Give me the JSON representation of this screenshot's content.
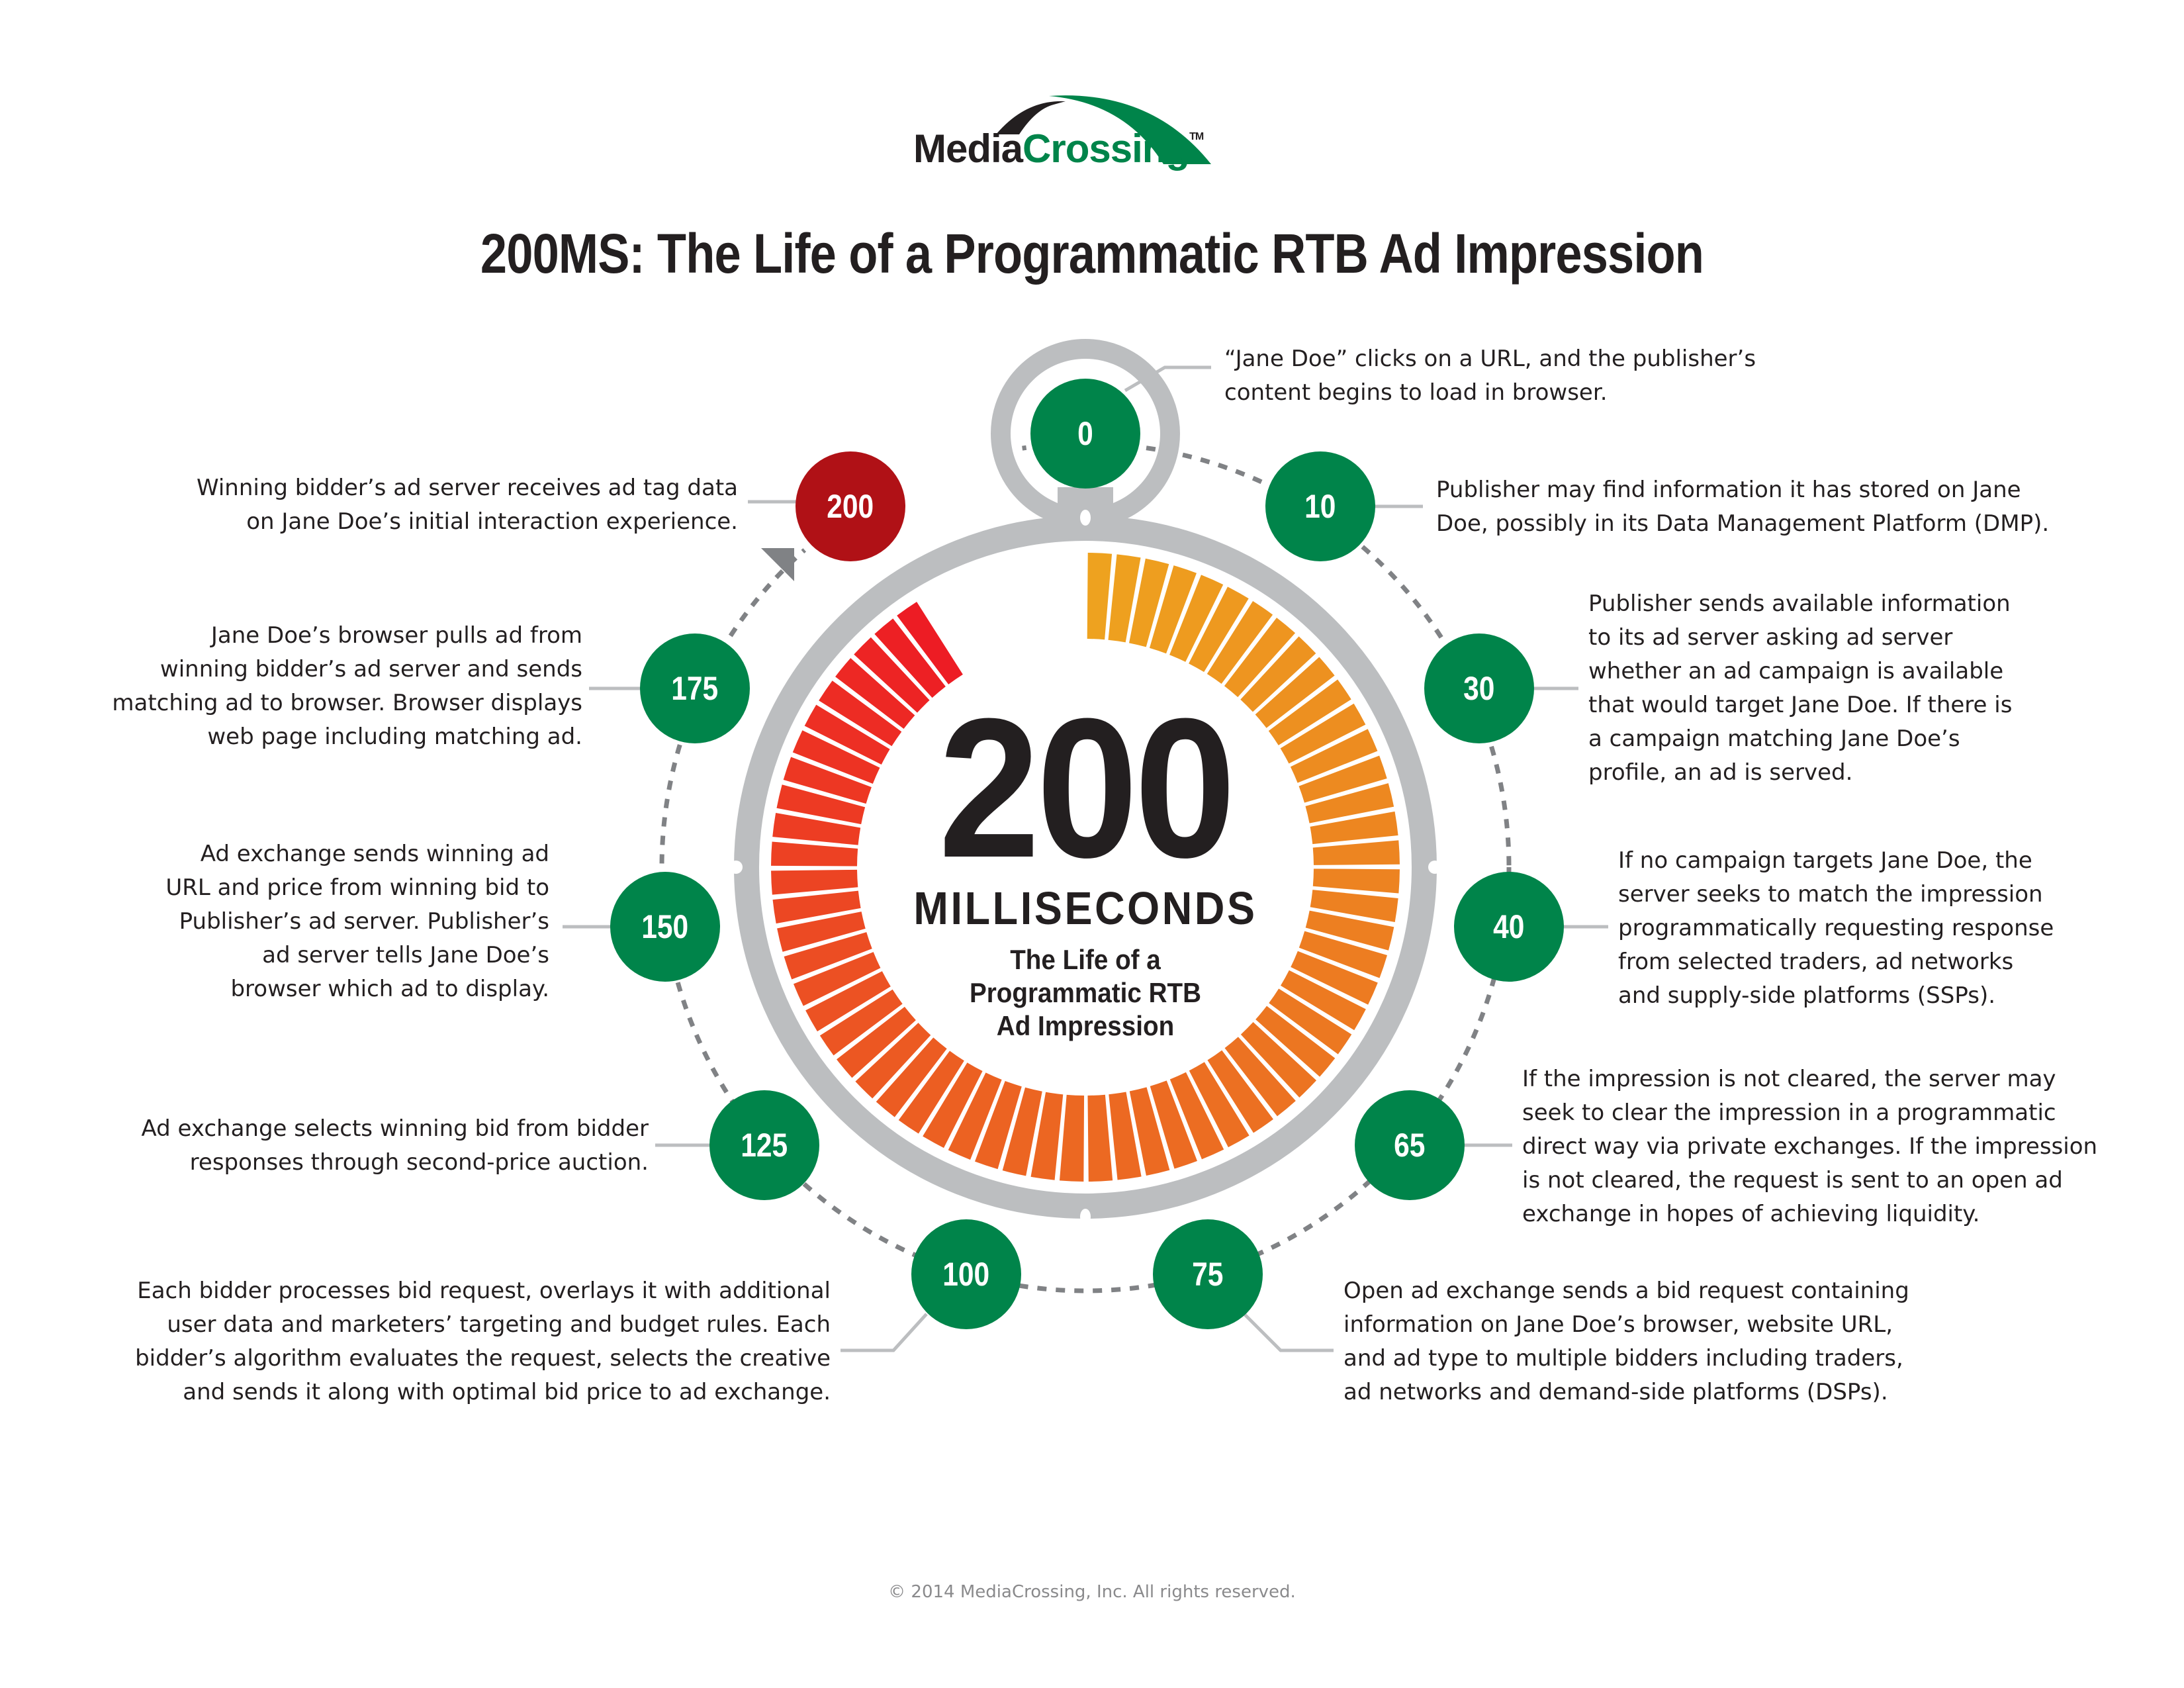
{
  "logo": {
    "part1": "Media",
    "part2": "Crossing",
    "trademark": "TM"
  },
  "title": "200MS: The Life of a Programmatic RTB Ad Impression",
  "center": {
    "big_number": "200",
    "unit": "MILLISECONDS",
    "subtitle_lines": [
      "The Life of a",
      "Programmatic RTB",
      "Ad Impression"
    ]
  },
  "colors": {
    "node_green": "#00844a",
    "node_red": "#b01116",
    "ring_gray": "#bcbec0",
    "dash_gray": "#808285",
    "segment_start": "#eea21f",
    "segment_mid": "#ec6a22",
    "segment_end": "#ed1c24"
  },
  "steps": [
    {
      "ms": "0",
      "lines": [
        "“Jane Doe” clicks on a URL, and the publisher’s",
        "content begins to load in browser."
      ]
    },
    {
      "ms": "10",
      "lines": [
        "Publisher may find information it has stored on Jane",
        "Doe, possibly in its Data Management Platform (DMP)."
      ]
    },
    {
      "ms": "30",
      "lines": [
        "Publisher sends available information",
        "to its ad server asking ad server",
        "whether an ad campaign is available",
        "that would target Jane Doe. If there is",
        "a campaign matching Jane Doe’s",
        "profile, an ad is served."
      ]
    },
    {
      "ms": "40",
      "lines": [
        "If no campaign targets Jane Doe, the",
        "server seeks to match the impression",
        "programmatically requesting response",
        "from selected traders, ad networks",
        "and supply-side platforms (SSPs)."
      ]
    },
    {
      "ms": "65",
      "lines": [
        "If the impression is not cleared, the server may",
        "seek to clear the impression in a programmatic",
        "direct way via private exchanges. If the impression",
        "is not cleared, the request is sent to an open ad",
        "exchange in hopes of achieving liquidity."
      ]
    },
    {
      "ms": "75",
      "lines": [
        "Open ad exchange sends a bid request containing",
        "information on Jane Doe’s browser, website URL,",
        "and ad type to multiple bidders including traders,",
        "ad networks and demand-side platforms (DSPs)."
      ]
    },
    {
      "ms": "100",
      "lines": [
        "Each bidder processes bid request, overlays it with additional",
        "user data and marketers’ targeting and budget rules. Each",
        "bidder’s algorithm evaluates the request, selects the creative",
        "and sends it along with optimal bid price to ad exchange."
      ]
    },
    {
      "ms": "125",
      "lines": [
        "Ad exchange selects winning bid from bidder",
        "responses through second-price auction."
      ]
    },
    {
      "ms": "150",
      "lines": [
        "Ad exchange sends winning ad",
        "URL and price from winning bid to",
        "Publisher’s ad server. Publisher’s",
        "ad server tells Jane Doe’s",
        "browser which ad to display."
      ]
    },
    {
      "ms": "175",
      "lines": [
        "Jane Doe’s browser pulls ad from",
        "winning bidder’s ad server and sends",
        "matching ad to browser. Browser displays",
        "web page including matching ad."
      ]
    },
    {
      "ms": "200",
      "lines": [
        "Winning bidder’s ad server receives ad tag data",
        "on Jane Doe’s initial interaction experience."
      ]
    }
  ],
  "footer": "© 2014 MediaCrossing, Inc. All rights reserved."
}
